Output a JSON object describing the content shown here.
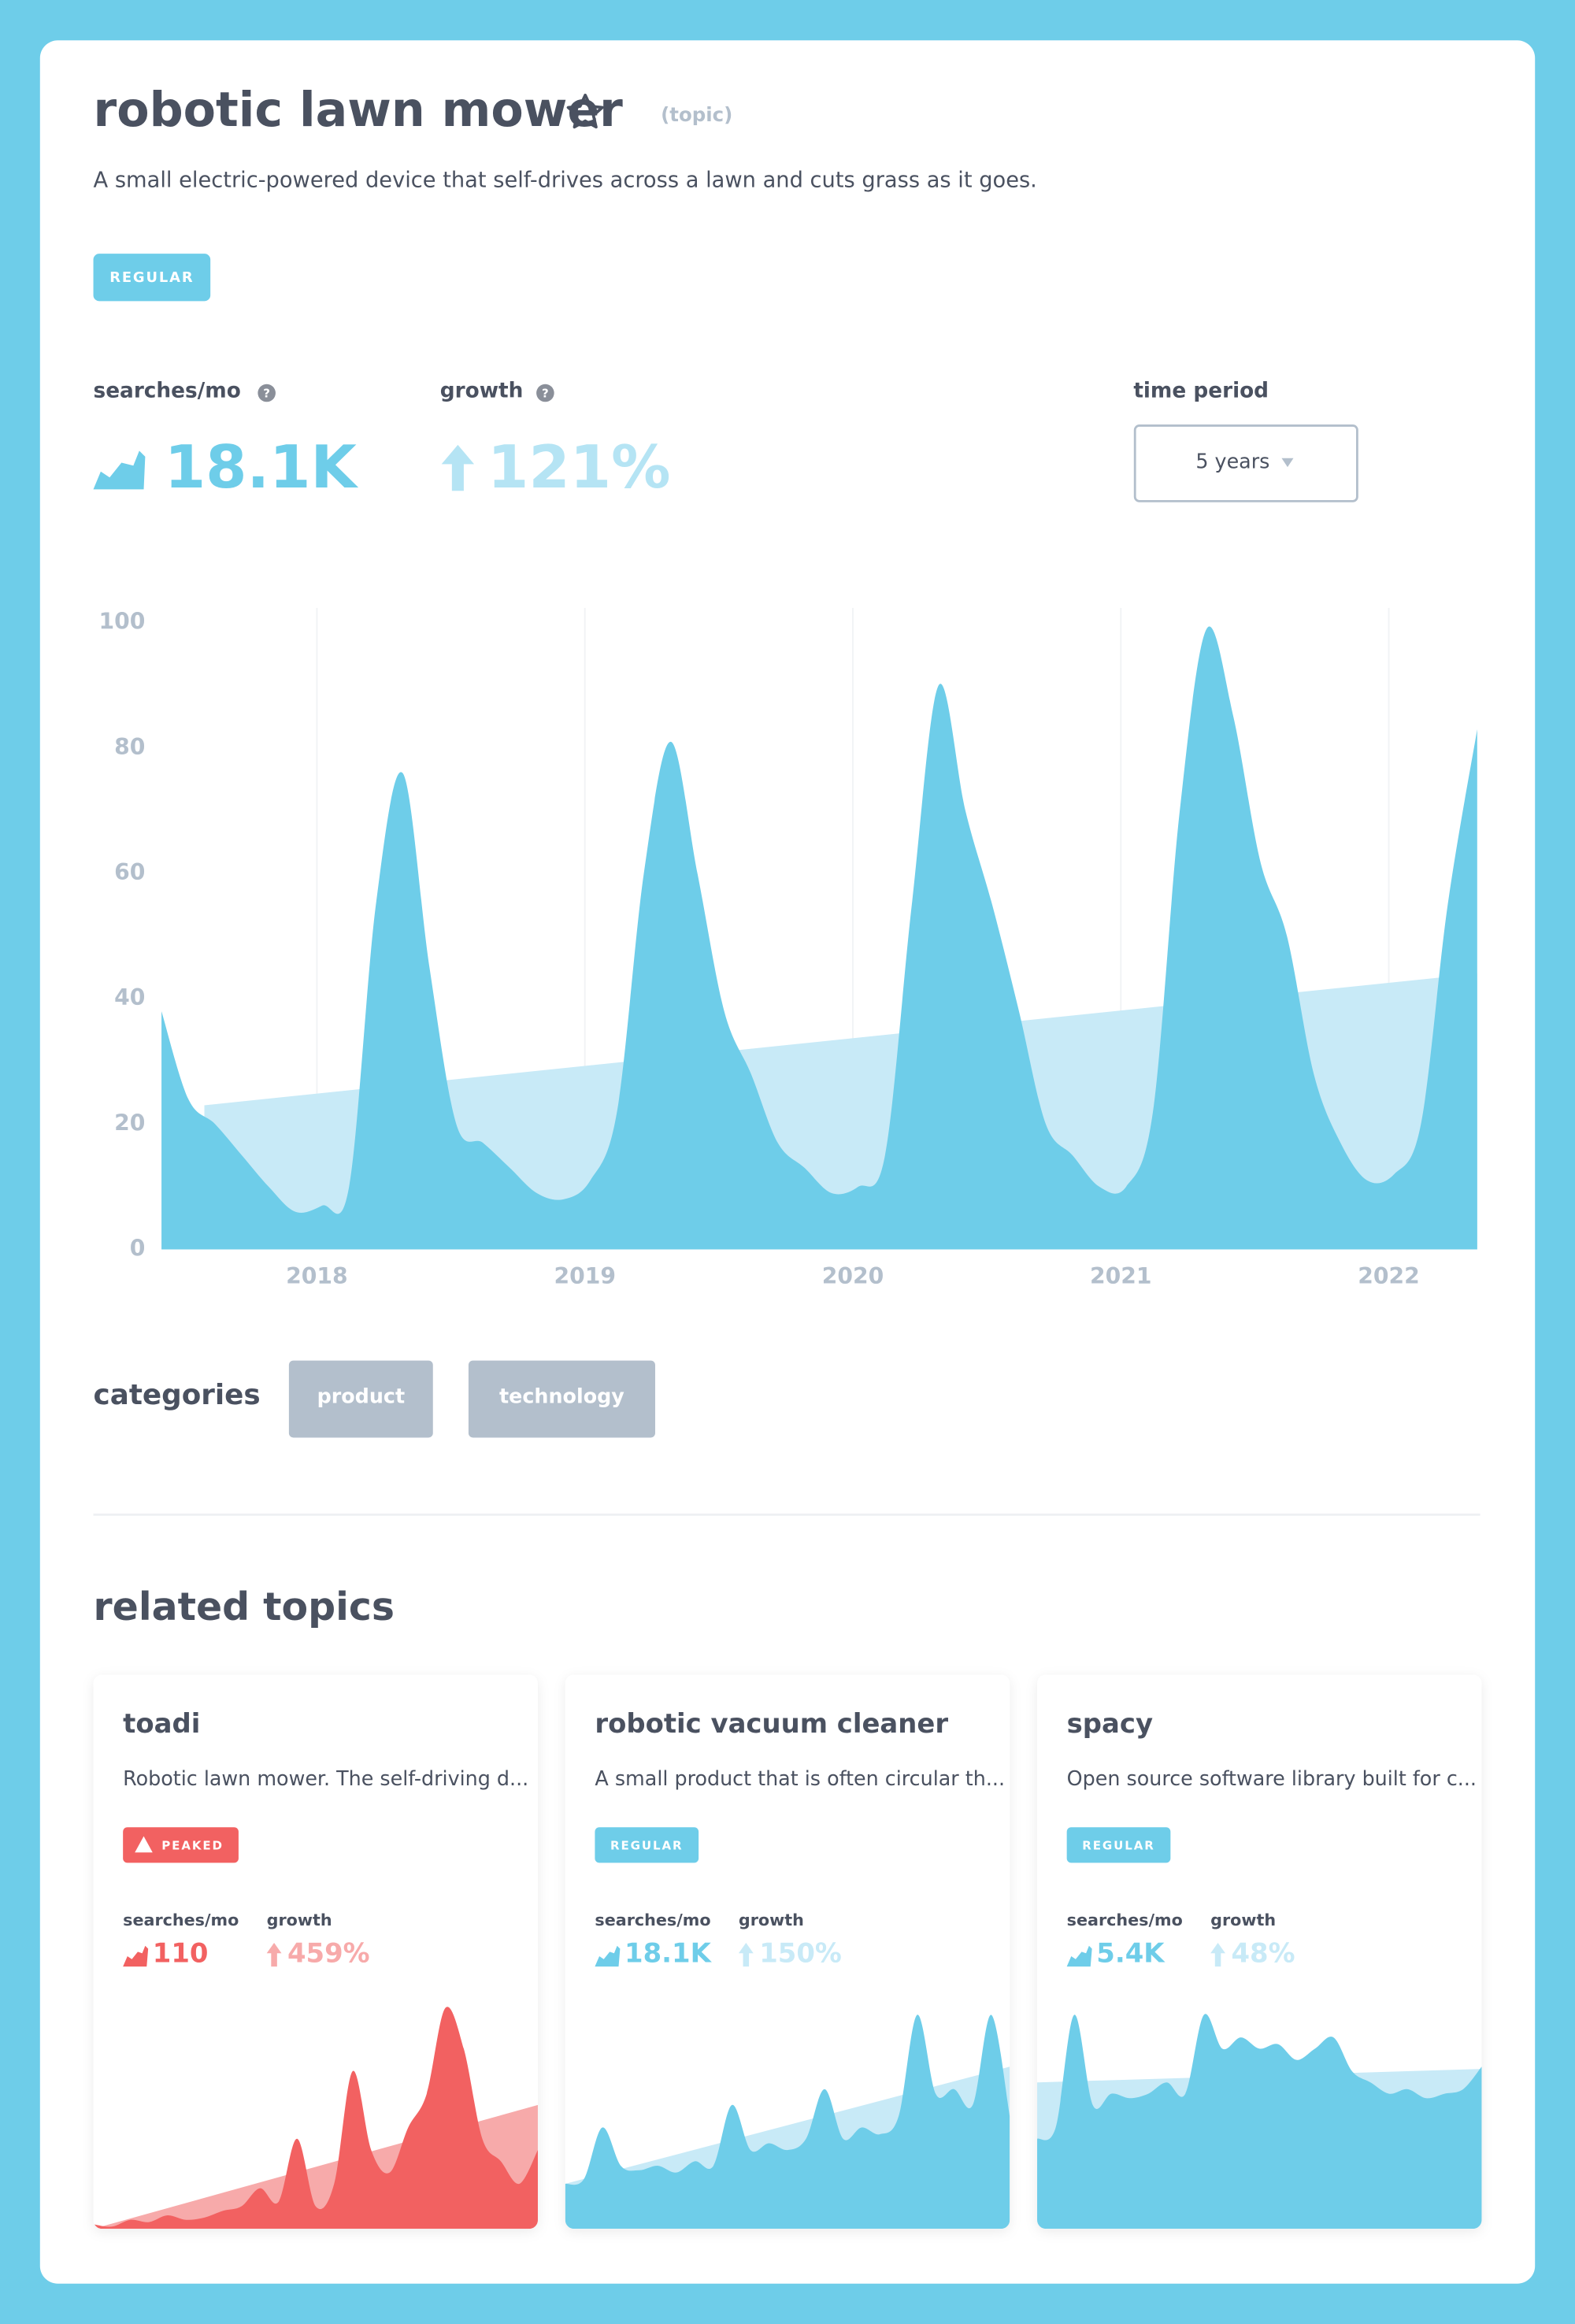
{
  "header": {
    "title": "robotic lawn mower",
    "kind": "(topic)",
    "description": "A small electric-powered device that self-drives across a lawn and cuts grass as it goes.",
    "badge": "REGULAR"
  },
  "metrics": {
    "searches": {
      "label": "searches/mo",
      "value": "18.1K"
    },
    "growth": {
      "label": "growth",
      "value": "121%"
    },
    "period": {
      "label": "time period",
      "value": "5 years"
    }
  },
  "chart_data": {
    "type": "area",
    "xlim": [
      2017.42,
      2022.33
    ],
    "xticks": [
      2018,
      2019,
      2020,
      2021,
      2022
    ],
    "ylim": [
      0,
      100
    ],
    "yticks": [
      0,
      20,
      40,
      60,
      80,
      100
    ],
    "series": [
      {
        "color": "#6ecde9",
        "x": [
          2017.42,
          2017.52,
          2017.62,
          2017.72,
          2017.82,
          2017.92,
          2018.02,
          2018.12,
          2018.22,
          2018.32,
          2018.42,
          2018.52,
          2018.62,
          2018.72,
          2018.82,
          2018.92,
          2019.02,
          2019.12,
          2019.22,
          2019.32,
          2019.42,
          2019.52,
          2019.62,
          2019.72,
          2019.82,
          2019.92,
          2020.02,
          2020.12,
          2020.22,
          2020.32,
          2020.42,
          2020.52,
          2020.62,
          2020.72,
          2020.82,
          2020.92,
          2021.02,
          2021.12,
          2021.22,
          2021.32,
          2021.42,
          2021.52,
          2021.62,
          2021.72,
          2021.82,
          2021.92,
          2022.02,
          2022.12,
          2022.22,
          2022.33
        ],
        "values": [
          38,
          24,
          20,
          15,
          10,
          6,
          7,
          10,
          55,
          76,
          45,
          20,
          17,
          13,
          9,
          8,
          11,
          22,
          60,
          81,
          60,
          38,
          28,
          17,
          13,
          9,
          10,
          15,
          55,
          90,
          70,
          55,
          38,
          20,
          15,
          10,
          10,
          22,
          70,
          99,
          85,
          62,
          50,
          28,
          17,
          11,
          12,
          20,
          55,
          83
        ]
      },
      {
        "color": "#c8eaf7",
        "x": [
          2017.58,
          2022.33
        ],
        "values": [
          23,
          44
        ]
      }
    ]
  },
  "categories": {
    "label": "categories",
    "items": [
      "product",
      "technology"
    ]
  },
  "related": {
    "title": "related topics",
    "searches_label": "searches/mo",
    "growth_label": "growth",
    "cards": [
      {
        "name": "toadi",
        "description": "Robotic lawn mower. The self-driving d...",
        "badge": "PEAKED",
        "searches": "110",
        "growth": "459%",
        "color": "#f26161",
        "trend_color": "#f7aaaa",
        "ylim": [
          0,
          100
        ],
        "values": [
          2,
          1,
          4,
          3,
          6,
          4,
          5,
          8,
          10,
          18,
          12,
          40,
          10,
          20,
          70,
          35,
          25,
          45,
          60,
          98,
          80,
          40,
          30,
          20,
          35
        ],
        "trend": [
          0,
          55
        ]
      },
      {
        "name": "robotic vacuum cleaner",
        "description": "A small product that is often circular th...",
        "badge": "REGULAR",
        "searches": "18.1K",
        "growth": "150%",
        "color": "#6ecde9",
        "trend_color": "#c8eaf7",
        "ylim": [
          0,
          100
        ],
        "values": [
          20,
          22,
          45,
          28,
          26,
          28,
          25,
          30,
          28,
          55,
          35,
          38,
          35,
          40,
          62,
          40,
          45,
          42,
          50,
          95,
          60,
          62,
          55,
          95,
          50
        ],
        "trend": [
          20,
          72
        ]
      },
      {
        "name": "spacy",
        "description": "Open source software library built for c...",
        "badge": "REGULAR",
        "searches": "5.4K",
        "growth": "48%",
        "color": "#6ecde9",
        "trend_color": "#c8eaf7",
        "ylim": [
          0,
          100
        ],
        "values": [
          40,
          45,
          95,
          55,
          60,
          58,
          60,
          65,
          60,
          95,
          80,
          85,
          80,
          82,
          75,
          80,
          85,
          70,
          65,
          60,
          62,
          58,
          60,
          62,
          72
        ],
        "trend": [
          65,
          71
        ]
      }
    ]
  }
}
